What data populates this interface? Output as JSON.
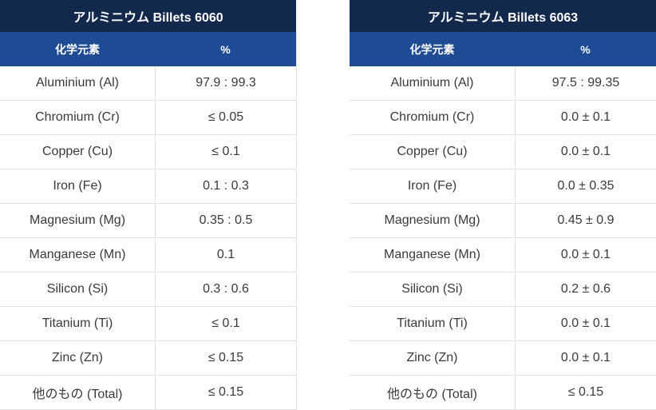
{
  "tables": [
    {
      "title": "アルミニウム Billets 6060",
      "col_element": "化学元素",
      "col_percent": "%",
      "rows": [
        {
          "element": "Aluminium (Al)",
          "value": "97.9 : 99.3"
        },
        {
          "element": "Chromium (Cr)",
          "value": "≤ 0.05"
        },
        {
          "element": "Copper (Cu)",
          "value": "≤ 0.1"
        },
        {
          "element": "Iron (Fe)",
          "value": "0.1 : 0.3"
        },
        {
          "element": "Magnesium (Mg)",
          "value": "0.35 : 0.5"
        },
        {
          "element": "Manganese (Mn)",
          "value": "0.1"
        },
        {
          "element": "Silicon (Si)",
          "value": "0.3 : 0.6"
        },
        {
          "element": "Titanium (Ti)",
          "value": "≤ 0.1"
        },
        {
          "element": "Zinc (Zn)",
          "value": "≤ 0.15"
        },
        {
          "element": "他のもの (Total)",
          "value": "≤ 0.15"
        }
      ]
    },
    {
      "title": "アルミニウム Billets 6063",
      "col_element": "化学元素",
      "col_percent": "%",
      "rows": [
        {
          "element": "Aluminium (Al)",
          "value": "97.5 : 99.35"
        },
        {
          "element": "Chromium (Cr)",
          "value": "0.0 ± 0.1"
        },
        {
          "element": "Copper (Cu)",
          "value": "0.0 ± 0.1"
        },
        {
          "element": "Iron (Fe)",
          "value": "0.0 ± 0.35"
        },
        {
          "element": "Magnesium (Mg)",
          "value": "0.45 ± 0.9"
        },
        {
          "element": "Manganese (Mn)",
          "value": "0.0 ± 0.1"
        },
        {
          "element": "Silicon (Si)",
          "value": "0.2 ± 0.6"
        },
        {
          "element": "Titanium (Ti)",
          "value": "0.0 ± 0.1"
        },
        {
          "element": "Zinc (Zn)",
          "value": "0.0 ± 0.1"
        },
        {
          "element": "他のもの (Total)",
          "value": "≤ 0.15"
        }
      ]
    }
  ]
}
